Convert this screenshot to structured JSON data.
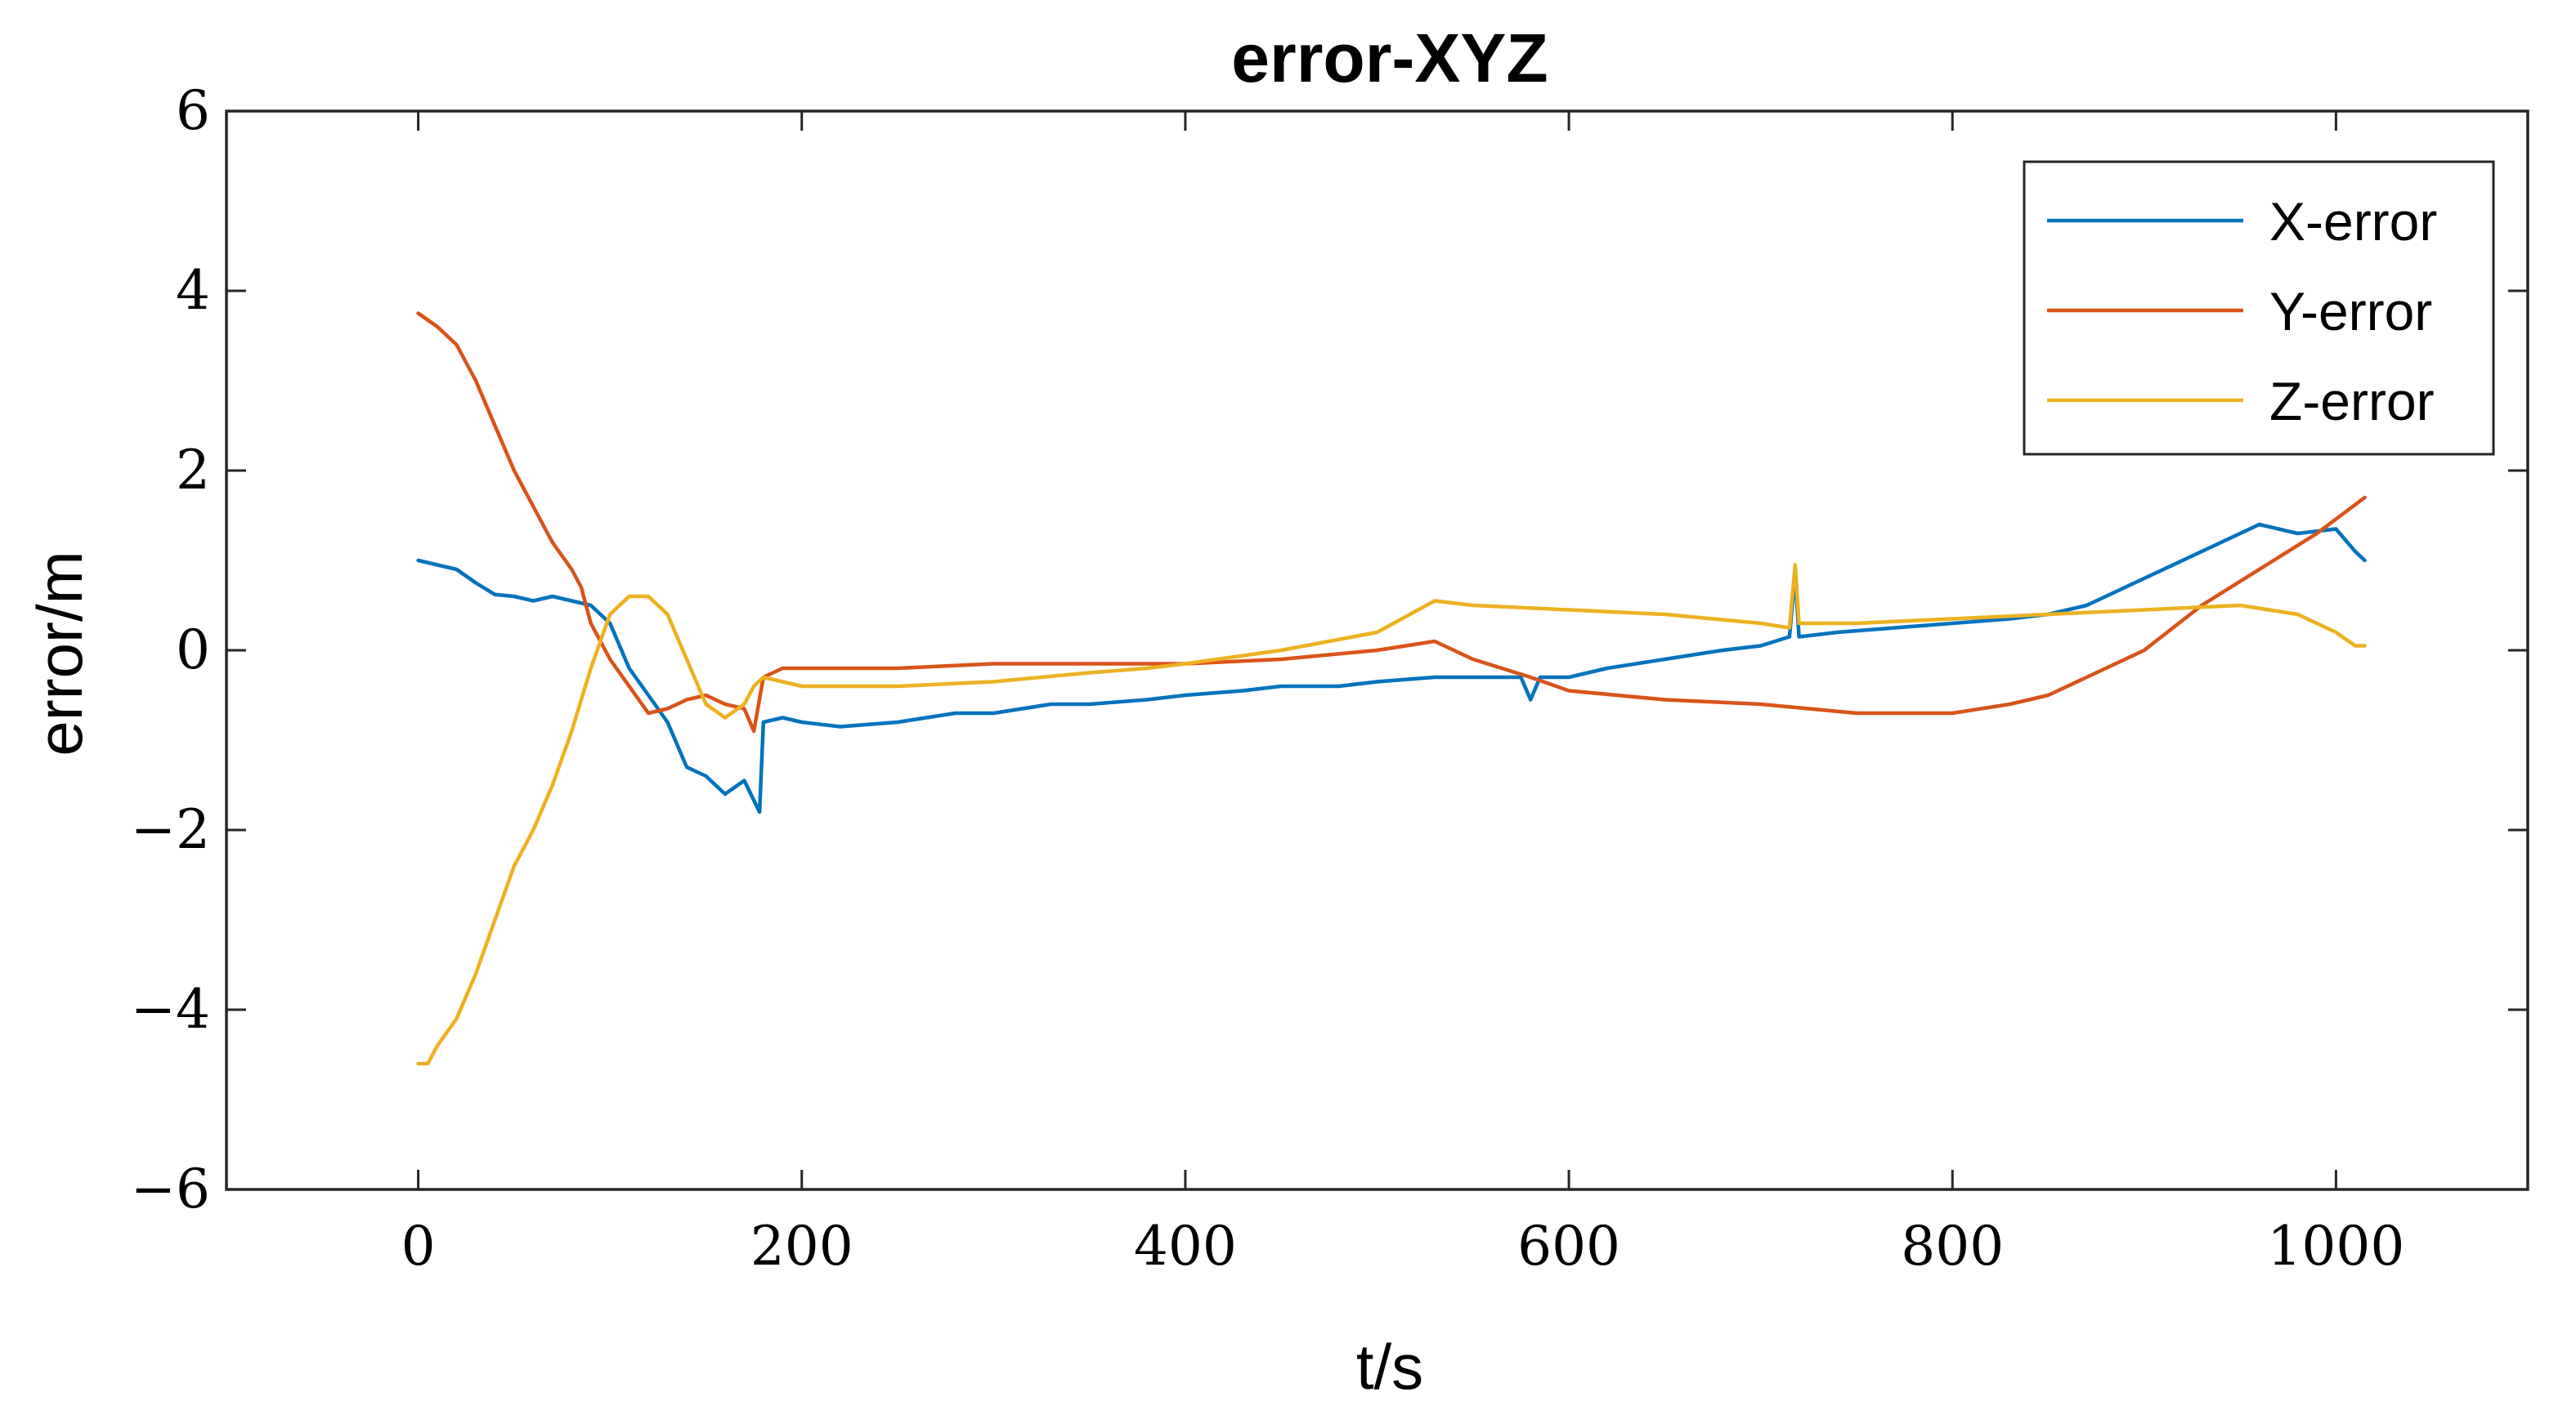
{
  "chart_data": {
    "type": "line",
    "title": "error-XYZ",
    "xlabel": "t/s",
    "ylabel": "error/m",
    "xlim": [
      -100,
      1100
    ],
    "ylim": [
      -6,
      6
    ],
    "xticks": [
      0,
      200,
      400,
      600,
      800,
      1000
    ],
    "yticks": [
      -6,
      -4,
      -2,
      0,
      2,
      4,
      6
    ],
    "xtick_labels": [
      "0",
      "200",
      "400",
      "600",
      "800",
      "1000"
    ],
    "ytick_labels": [
      "−6",
      "−4",
      "−2",
      "0",
      "2",
      "4",
      "6"
    ],
    "grid": false,
    "legend_position": "top-right",
    "series": [
      {
        "name": "X-error",
        "color": "#0072BD",
        "x": [
          0,
          10,
          20,
          30,
          40,
          50,
          60,
          70,
          80,
          90,
          100,
          110,
          120,
          130,
          140,
          150,
          160,
          170,
          178,
          180,
          190,
          200,
          220,
          250,
          280,
          300,
          330,
          350,
          380,
          400,
          430,
          450,
          480,
          500,
          530,
          550,
          575,
          580,
          585,
          600,
          620,
          650,
          680,
          700,
          715,
          718,
          720,
          740,
          770,
          800,
          830,
          850,
          870,
          880,
          900,
          920,
          940,
          960,
          980,
          1000,
          1010,
          1015
        ],
        "y": [
          1.0,
          0.95,
          0.9,
          0.75,
          0.62,
          0.6,
          0.55,
          0.6,
          0.55,
          0.5,
          0.3,
          -0.2,
          -0.5,
          -0.8,
          -1.3,
          -1.4,
          -1.6,
          -1.45,
          -1.8,
          -0.8,
          -0.75,
          -0.8,
          -0.85,
          -0.8,
          -0.7,
          -0.7,
          -0.6,
          -0.6,
          -0.55,
          -0.5,
          -0.45,
          -0.4,
          -0.4,
          -0.35,
          -0.3,
          -0.3,
          -0.3,
          -0.55,
          -0.3,
          -0.3,
          -0.2,
          -0.1,
          0.0,
          0.05,
          0.15,
          0.85,
          0.15,
          0.2,
          0.25,
          0.3,
          0.35,
          0.4,
          0.5,
          0.6,
          0.8,
          1.0,
          1.2,
          1.4,
          1.3,
          1.35,
          1.1,
          1.0
        ]
      },
      {
        "name": "Y-error",
        "color": "#D95319",
        "x": [
          0,
          10,
          20,
          30,
          40,
          50,
          60,
          70,
          80,
          85,
          90,
          100,
          110,
          120,
          130,
          140,
          150,
          160,
          170,
          175,
          180,
          190,
          200,
          250,
          300,
          350,
          400,
          450,
          500,
          530,
          550,
          580,
          600,
          650,
          700,
          750,
          800,
          830,
          850,
          870,
          900,
          930,
          960,
          990,
          1015
        ],
        "y": [
          3.75,
          3.6,
          3.4,
          3.0,
          2.5,
          2.0,
          1.6,
          1.2,
          0.9,
          0.7,
          0.3,
          -0.1,
          -0.4,
          -0.7,
          -0.65,
          -0.55,
          -0.5,
          -0.6,
          -0.65,
          -0.9,
          -0.3,
          -0.2,
          -0.2,
          -0.2,
          -0.15,
          -0.15,
          -0.15,
          -0.1,
          0.0,
          0.1,
          -0.1,
          -0.3,
          -0.45,
          -0.55,
          -0.6,
          -0.7,
          -0.7,
          -0.6,
          -0.5,
          -0.3,
          0.0,
          0.5,
          0.9,
          1.3,
          1.7
        ]
      },
      {
        "name": "Z-error",
        "color": "#EDB120",
        "x": [
          0,
          5,
          10,
          20,
          30,
          40,
          50,
          60,
          70,
          80,
          90,
          100,
          110,
          120,
          130,
          140,
          150,
          160,
          170,
          175,
          180,
          190,
          200,
          250,
          300,
          350,
          380,
          400,
          450,
          500,
          530,
          550,
          600,
          650,
          700,
          715,
          718,
          720,
          750,
          800,
          850,
          900,
          950,
          980,
          1000,
          1010,
          1015
        ],
        "y": [
          -4.6,
          -4.6,
          -4.4,
          -4.1,
          -3.6,
          -3.0,
          -2.4,
          -2.0,
          -1.5,
          -0.9,
          -0.2,
          0.4,
          0.6,
          0.6,
          0.4,
          -0.1,
          -0.6,
          -0.75,
          -0.6,
          -0.4,
          -0.3,
          -0.35,
          -0.4,
          -0.4,
          -0.35,
          -0.25,
          -0.2,
          -0.15,
          0.0,
          0.2,
          0.55,
          0.5,
          0.45,
          0.4,
          0.3,
          0.25,
          0.95,
          0.3,
          0.3,
          0.35,
          0.4,
          0.45,
          0.5,
          0.4,
          0.2,
          0.05,
          0.05
        ]
      }
    ]
  }
}
